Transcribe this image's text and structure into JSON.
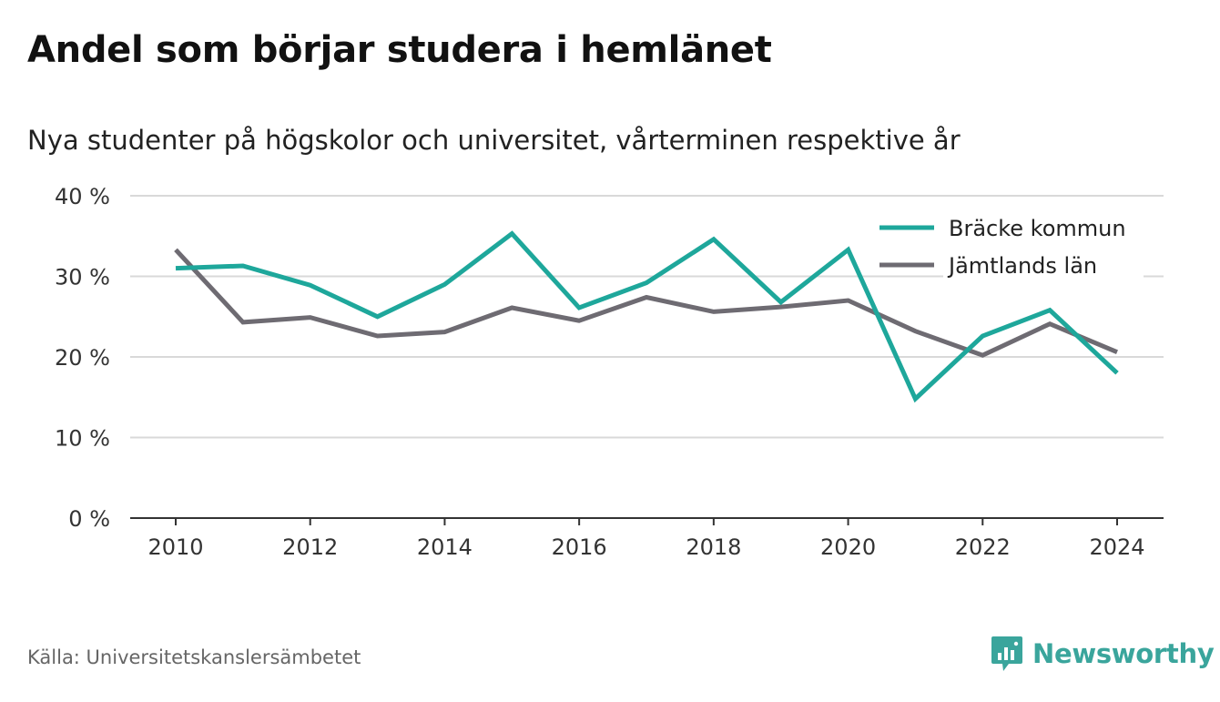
{
  "header": {
    "title": "Andel som börjar studera i hemlänet",
    "subtitle": "Nya studenter på högskolor och universitet, vårterminen respektive år"
  },
  "footer": {
    "source": "Källa: Universitetskanslersämbetet",
    "brand": "Newsworthy",
    "brand_icon": "newsworthy-logo-icon"
  },
  "colors": {
    "accent": "#1ea79b",
    "secondary": "#6e6b72",
    "grid": "#d9d9d9",
    "brand": "#3aa59c"
  },
  "chart_data": {
    "type": "line",
    "x": [
      2010,
      2011,
      2012,
      2013,
      2014,
      2015,
      2016,
      2017,
      2018,
      2019,
      2020,
      2021,
      2022,
      2023,
      2024
    ],
    "series": [
      {
        "name": "Bräcke kommun",
        "color": "#1ea79b",
        "values": [
          31.0,
          31.3,
          28.9,
          25.0,
          29.0,
          35.3,
          26.1,
          29.2,
          34.6,
          26.8,
          33.3,
          14.8,
          22.6,
          25.8,
          18.0
        ]
      },
      {
        "name": "Jämtlands län",
        "color": "#6e6b72",
        "values": [
          33.3,
          24.3,
          24.9,
          22.6,
          23.1,
          26.1,
          24.5,
          27.4,
          25.6,
          26.2,
          27.0,
          23.2,
          20.2,
          24.1,
          20.6
        ]
      }
    ],
    "ylim": [
      0,
      40
    ],
    "yticks": [
      0,
      10,
      20,
      30,
      40
    ],
    "ytick_labels": [
      "0 %",
      "10 %",
      "20 %",
      "30 %",
      "40 %"
    ],
    "xticks": [
      2010,
      2012,
      2014,
      2016,
      2018,
      2020,
      2022,
      2024
    ],
    "xtick_labels": [
      "2010",
      "2012",
      "2014",
      "2016",
      "2018",
      "2020",
      "2022",
      "2024"
    ],
    "grid": true,
    "legend_position": "top-right",
    "xlabel": "",
    "ylabel": ""
  }
}
